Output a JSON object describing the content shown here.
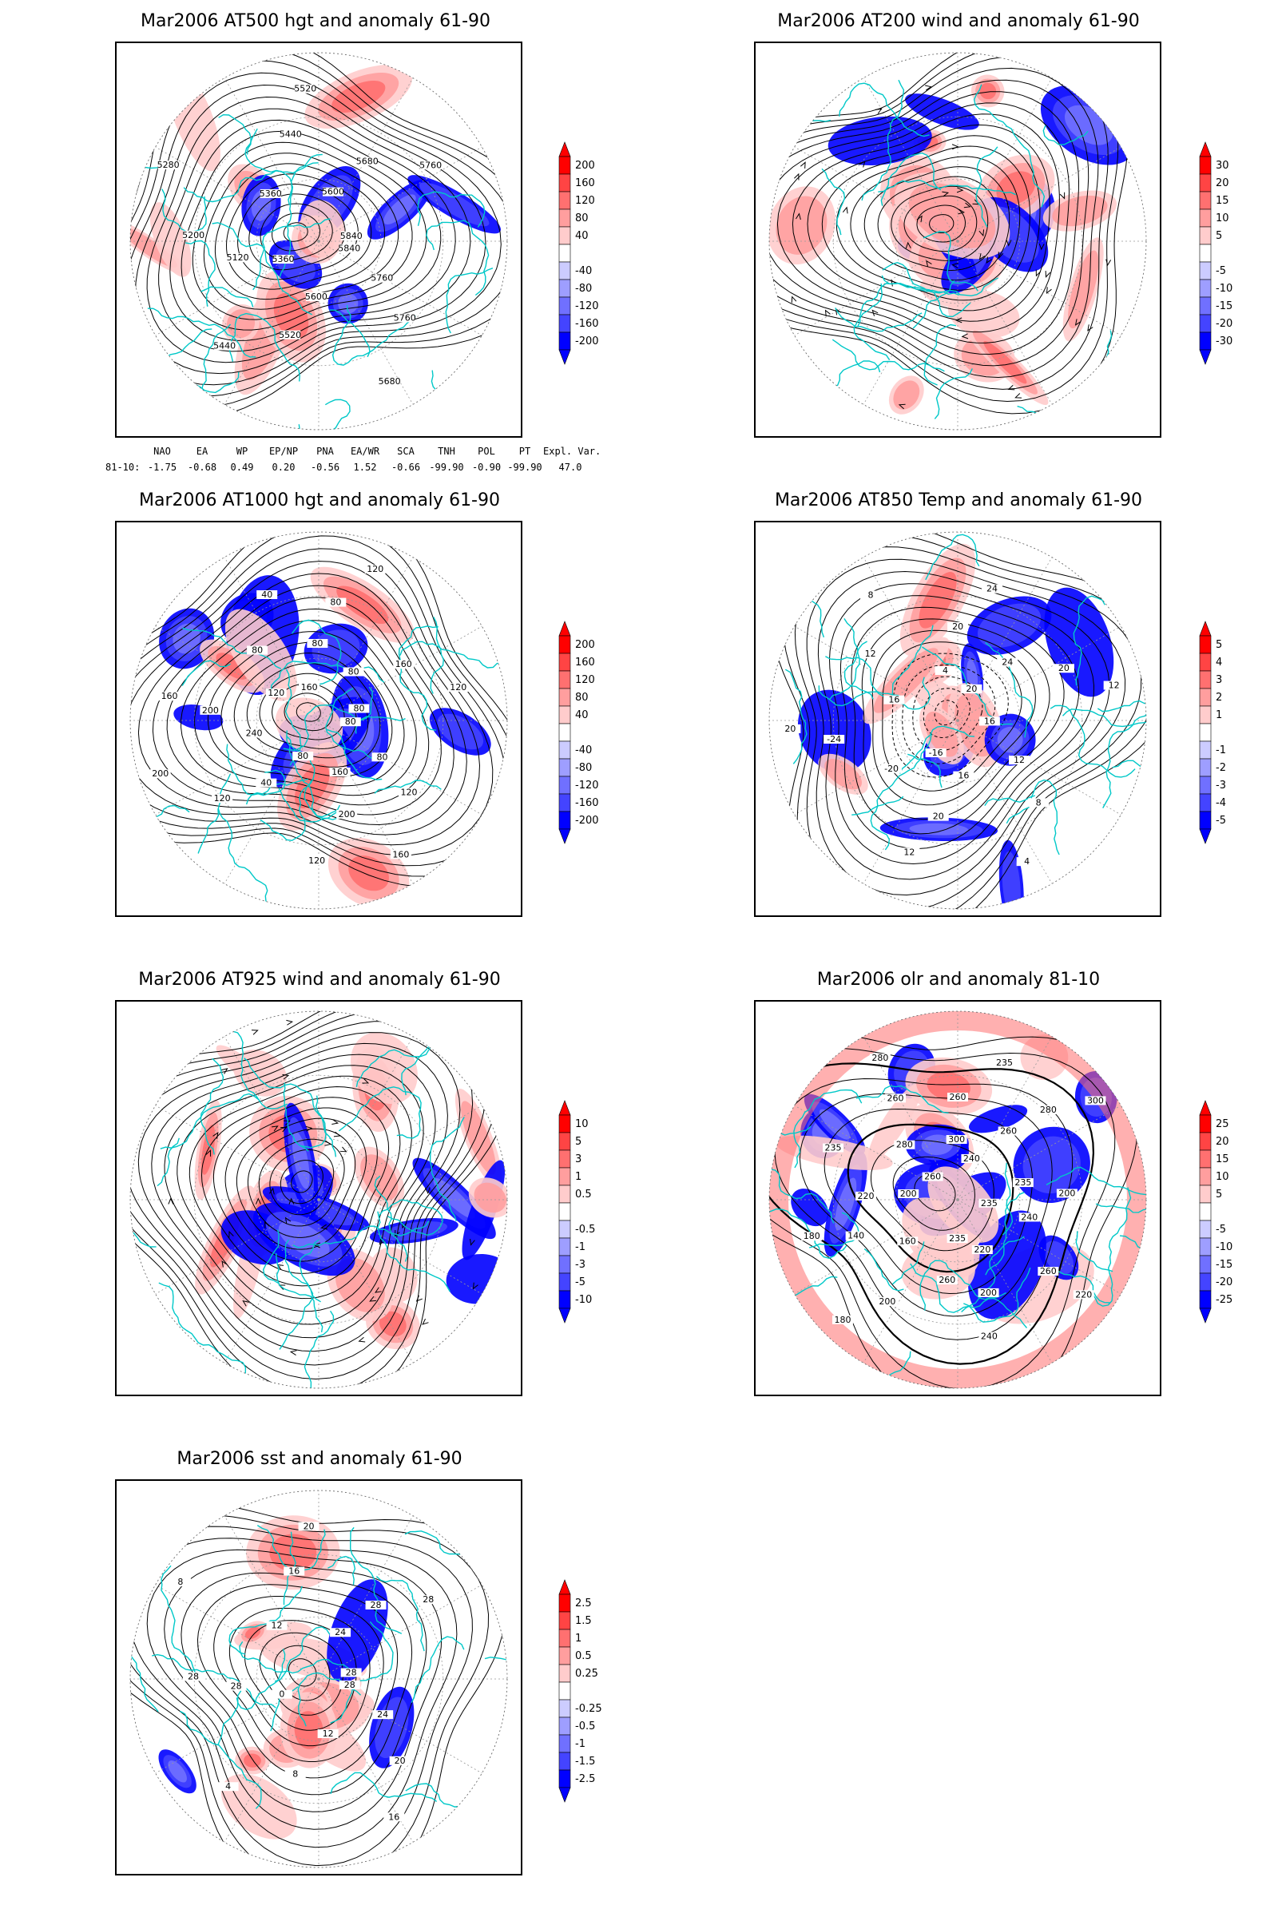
{
  "panels": [
    {
      "id": "p1",
      "title": "Mar2006 AT500 hgt and anomaly 61-90",
      "colorbar": [
        "200",
        "160",
        "120",
        "80",
        "40",
        "-40",
        "-80",
        "-120",
        "-160",
        "-200"
      ],
      "contour_labels": [
        "5840",
        "5760",
        "5760",
        "5680",
        "5600",
        "5520",
        "5440",
        "5360",
        "5120",
        "5200",
        "5280",
        "5360",
        "5440",
        "5520",
        "5600",
        "5680",
        "5760",
        "5840"
      ]
    },
    {
      "id": "p2",
      "title": "Mar2006 AT200 wind and anomaly 61-90",
      "colorbar": [
        "30",
        "20",
        "15",
        "10",
        "5",
        "-5",
        "-10",
        "-15",
        "-20",
        "-30"
      ],
      "contour_labels": []
    },
    {
      "id": "p3",
      "title": "Mar2006 AT1000 hgt and anomaly 61-90",
      "colorbar": [
        "200",
        "160",
        "120",
        "80",
        "40",
        "-40",
        "-80",
        "-120",
        "-160",
        "-200"
      ],
      "contour_labels": [
        "80",
        "80",
        "120",
        "160",
        "160",
        "200",
        "120",
        "80",
        "40",
        "120",
        "200",
        "240",
        "200",
        "160",
        "120",
        "80",
        "40",
        "160",
        "80",
        "80",
        "120",
        "80",
        "160",
        "120",
        "80"
      ]
    },
    {
      "id": "p4",
      "title": "Mar2006 AT850 Temp and anomaly 61-90",
      "colorbar": [
        "5",
        "4",
        "3",
        "2",
        "1",
        "-1",
        "-2",
        "-3",
        "-4",
        "-5"
      ],
      "contour_labels": [
        "16",
        "12",
        "8",
        "4",
        "16",
        "20",
        "12",
        "-16",
        "-20",
        "-24",
        "20",
        "16",
        "12",
        "8",
        "4",
        "20",
        "24",
        "20",
        "24",
        "20",
        "12"
      ]
    },
    {
      "id": "p5",
      "title": "Mar2006 AT925 wind and anomaly 61-90",
      "colorbar": [
        "10",
        "5",
        "3",
        "1",
        "0.5",
        "-0.5",
        "-1",
        "-3",
        "-5",
        "-10"
      ],
      "contour_labels": []
    },
    {
      "id": "p6",
      "title": "Mar2006 olr and anomaly 81-10",
      "colorbar": [
        "25",
        "20",
        "15",
        "10",
        "5",
        "-5",
        "-10",
        "-15",
        "-20",
        "-25"
      ],
      "contour_labels": [
        "235",
        "240",
        "260",
        "220",
        "220",
        "200",
        "240",
        "235",
        "260",
        "200",
        "180",
        "160",
        "140",
        "180",
        "200",
        "220",
        "235",
        "260",
        "280",
        "260",
        "280",
        "300",
        "260",
        "235",
        "240",
        "260",
        "280",
        "300",
        "235",
        "200"
      ]
    },
    {
      "id": "p7",
      "title": "Mar2006 sst and anomaly 61-90",
      "colorbar": [
        "2.5",
        "1.5",
        "1",
        "0.5",
        "0.25",
        "-0.25",
        "-0.5",
        "-1",
        "-1.5",
        "-2.5"
      ],
      "contour_labels": [
        "28",
        "24",
        "20",
        "16",
        "12",
        "8",
        "4",
        "0",
        "28",
        "28",
        "8",
        "12",
        "16",
        "20",
        "24",
        "28",
        "28",
        "28"
      ]
    }
  ],
  "teleconnection": {
    "headers": [
      "NAO",
      "EA",
      "WP",
      "EP/NP",
      "PNA",
      "EA/WR",
      "SCA",
      "TNH",
      "POL",
      "PT",
      "Expl. Var."
    ],
    "row_label": "81-10:",
    "values": [
      "-1.75",
      "-0.68",
      "0.49",
      "0.20",
      "-0.56",
      "1.52",
      "-0.66",
      "-99.90",
      "-0.90",
      "-99.90",
      "47.0"
    ]
  },
  "colors": {
    "warm": [
      "#ff0000",
      "#ff4444",
      "#ff7070",
      "#ff9e9e",
      "#ffcccc"
    ],
    "cold": [
      "#ccccff",
      "#9e9eff",
      "#7070ff",
      "#4444ff",
      "#0000ff"
    ],
    "coast": "#00c8c8",
    "contour": "#000000"
  }
}
